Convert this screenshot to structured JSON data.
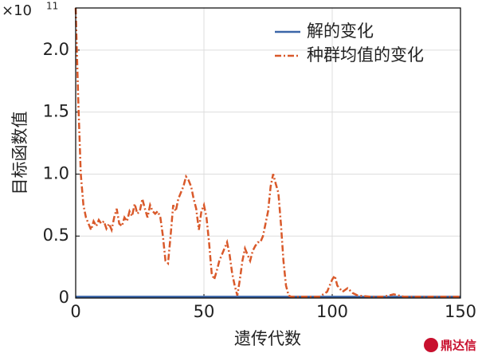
{
  "chart_data": {
    "type": "line",
    "xlabel": "遗传代数",
    "ylabel": "目标函数值",
    "y_offset": {
      "base": "×10",
      "exponent": "11"
    },
    "watermark": "鼎达信",
    "xlim": [
      0,
      150
    ],
    "xticks": [
      0,
      50,
      100,
      150
    ],
    "ylim": [
      0,
      2.34
    ],
    "yticks": [
      0,
      0.5,
      {
        "value": 1,
        "label": "1.0"
      },
      1.5,
      {
        "value": 2,
        "label": "2.0"
      }
    ],
    "grid": true,
    "legend": "upper right",
    "series": [
      {
        "name": "解的变化",
        "color": "#3b66a8",
        "style": "solid",
        "x": [
          0,
          150
        ],
        "values": [
          0.01,
          0.01
        ]
      },
      {
        "name": "种群均值的变化",
        "color": "#d9592a",
        "style": "dashdot",
        "x": [
          0,
          1,
          2,
          3,
          4,
          5,
          6,
          7,
          8,
          9,
          10,
          11,
          12,
          13,
          14,
          15,
          16,
          17,
          18,
          19,
          20,
          21,
          22,
          23,
          24,
          25,
          26,
          27,
          28,
          29,
          30,
          31,
          32,
          33,
          34,
          35,
          36,
          37,
          38,
          39,
          40,
          41,
          42,
          43,
          44,
          45,
          46,
          47,
          48,
          49,
          50,
          51,
          52,
          53,
          54,
          55,
          56,
          57,
          58,
          59,
          60,
          61,
          62,
          63,
          64,
          65,
          66,
          67,
          68,
          69,
          70,
          71,
          72,
          73,
          74,
          75,
          76,
          77,
          78,
          79,
          80,
          81,
          82,
          83,
          84,
          86,
          90,
          95,
          98,
          100,
          101,
          102,
          104,
          106,
          108,
          110,
          115,
          120,
          124,
          126,
          128,
          135,
          140,
          150
        ],
        "values": [
          2.34,
          1.6,
          1.0,
          0.75,
          0.65,
          0.6,
          0.55,
          0.62,
          0.58,
          0.63,
          0.6,
          0.62,
          0.56,
          0.6,
          0.55,
          0.65,
          0.72,
          0.6,
          0.58,
          0.65,
          0.62,
          0.7,
          0.66,
          0.76,
          0.68,
          0.7,
          0.8,
          0.72,
          0.65,
          0.75,
          0.7,
          0.68,
          0.7,
          0.65,
          0.5,
          0.3,
          0.28,
          0.5,
          0.75,
          0.7,
          0.8,
          0.85,
          0.9,
          0.98,
          0.95,
          0.9,
          0.8,
          0.72,
          0.55,
          0.7,
          0.75,
          0.65,
          0.45,
          0.2,
          0.15,
          0.22,
          0.3,
          0.35,
          0.4,
          0.45,
          0.35,
          0.2,
          0.1,
          0.02,
          0.15,
          0.3,
          0.4,
          0.35,
          0.3,
          0.38,
          0.42,
          0.45,
          0.45,
          0.5,
          0.6,
          0.7,
          0.9,
          1.0,
          0.92,
          0.85,
          0.6,
          0.3,
          0.1,
          0.02,
          0.01,
          0.01,
          0.01,
          0.01,
          0.05,
          0.15,
          0.18,
          0.1,
          0.05,
          0.08,
          0.04,
          0.02,
          0.01,
          0.01,
          0.03,
          0.02,
          0.01,
          0.01,
          0.01,
          0.01
        ]
      }
    ]
  }
}
